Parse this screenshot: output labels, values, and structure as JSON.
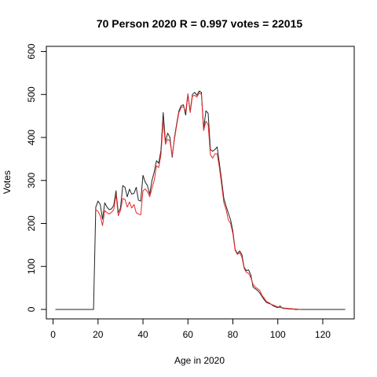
{
  "chart_data": {
    "type": "line",
    "title": "70 Person 2020 R = 0.997 votes = 22015",
    "xlabel": "Age in 2020",
    "ylabel": "Votes",
    "xlim": [
      -3,
      134
    ],
    "ylim": [
      -22,
      612
    ],
    "x_ticks": [
      0,
      20,
      40,
      60,
      80,
      100,
      120
    ],
    "y_ticks": [
      0,
      100,
      200,
      300,
      400,
      500,
      600
    ],
    "grid": false,
    "legend": "none",
    "series": [
      {
        "color": "#222222",
        "points": [
          [
            1,
            0
          ],
          [
            18,
            0
          ],
          [
            19,
            238
          ],
          [
            20,
            252
          ],
          [
            21,
            244
          ],
          [
            22,
            210
          ],
          [
            23,
            248
          ],
          [
            24,
            238
          ],
          [
            25,
            232
          ],
          [
            26,
            234
          ],
          [
            27,
            242
          ],
          [
            28,
            276
          ],
          [
            29,
            225
          ],
          [
            30,
            236
          ],
          [
            31,
            288
          ],
          [
            32,
            284
          ],
          [
            33,
            262
          ],
          [
            34,
            280
          ],
          [
            35,
            268
          ],
          [
            36,
            270
          ],
          [
            37,
            284
          ],
          [
            38,
            254
          ],
          [
            39,
            252
          ],
          [
            40,
            312
          ],
          [
            41,
            296
          ],
          [
            42,
            288
          ],
          [
            43,
            268
          ],
          [
            44,
            300
          ],
          [
            45,
            320
          ],
          [
            46,
            346
          ],
          [
            47,
            340
          ],
          [
            48,
            370
          ],
          [
            49,
            458
          ],
          [
            50,
            390
          ],
          [
            51,
            410
          ],
          [
            52,
            400
          ],
          [
            53,
            354
          ],
          [
            54,
            400
          ],
          [
            55,
            432
          ],
          [
            56,
            462
          ],
          [
            57,
            474
          ],
          [
            58,
            476
          ],
          [
            59,
            452
          ],
          [
            60,
            500
          ],
          [
            61,
            460
          ],
          [
            62,
            500
          ],
          [
            63,
            505
          ],
          [
            64,
            498
          ],
          [
            65,
            508
          ],
          [
            66,
            505
          ],
          [
            67,
            420
          ],
          [
            68,
            462
          ],
          [
            69,
            456
          ],
          [
            70,
            372
          ],
          [
            71,
            368
          ],
          [
            72,
            372
          ],
          [
            73,
            378
          ],
          [
            74,
            340
          ],
          [
            75,
            300
          ],
          [
            76,
            258
          ],
          [
            77,
            240
          ],
          [
            78,
            224
          ],
          [
            79,
            208
          ],
          [
            80,
            182
          ],
          [
            81,
            140
          ],
          [
            82,
            130
          ],
          [
            83,
            136
          ],
          [
            84,
            128
          ],
          [
            85,
            98
          ],
          [
            86,
            90
          ],
          [
            87,
            92
          ],
          [
            88,
            80
          ],
          [
            89,
            52
          ],
          [
            90,
            48
          ],
          [
            91,
            44
          ],
          [
            92,
            38
          ],
          [
            93,
            30
          ],
          [
            94,
            22
          ],
          [
            95,
            16
          ],
          [
            96,
            14
          ],
          [
            97,
            12
          ],
          [
            98,
            8
          ],
          [
            99,
            6
          ],
          [
            100,
            4
          ],
          [
            101,
            8
          ],
          [
            102,
            3
          ],
          [
            103,
            2
          ],
          [
            104,
            2
          ],
          [
            105,
            1
          ],
          [
            106,
            1
          ],
          [
            108,
            0
          ],
          [
            130,
            0
          ]
        ]
      },
      {
        "color": "#e8272a",
        "points": [
          [
            19,
            232
          ],
          [
            20,
            228
          ],
          [
            21,
            218
          ],
          [
            22,
            195
          ],
          [
            23,
            230
          ],
          [
            24,
            225
          ],
          [
            25,
            222
          ],
          [
            26,
            226
          ],
          [
            27,
            232
          ],
          [
            28,
            268
          ],
          [
            29,
            218
          ],
          [
            30,
            230
          ],
          [
            31,
            258
          ],
          [
            32,
            256
          ],
          [
            33,
            238
          ],
          [
            34,
            250
          ],
          [
            35,
            236
          ],
          [
            36,
            244
          ],
          [
            37,
            225
          ],
          [
            38,
            222
          ],
          [
            39,
            220
          ],
          [
            40,
            276
          ],
          [
            41,
            280
          ],
          [
            42,
            274
          ],
          [
            43,
            262
          ],
          [
            44,
            282
          ],
          [
            45,
            300
          ],
          [
            46,
            334
          ],
          [
            47,
            330
          ],
          [
            48,
            360
          ],
          [
            49,
            440
          ],
          [
            50,
            384
          ],
          [
            51,
            396
          ],
          [
            52,
            392
          ],
          [
            53,
            358
          ],
          [
            54,
            396
          ],
          [
            55,
            428
          ],
          [
            56,
            458
          ],
          [
            57,
            470
          ],
          [
            58,
            472
          ],
          [
            59,
            460
          ],
          [
            60,
            502
          ],
          [
            61,
            458
          ],
          [
            62,
            496
          ],
          [
            63,
            498
          ],
          [
            64,
            494
          ],
          [
            65,
            504
          ],
          [
            66,
            500
          ],
          [
            67,
            416
          ],
          [
            68,
            438
          ],
          [
            69,
            430
          ],
          [
            70,
            360
          ],
          [
            71,
            352
          ],
          [
            72,
            362
          ],
          [
            73,
            362
          ],
          [
            74,
            330
          ],
          [
            75,
            290
          ],
          [
            76,
            248
          ],
          [
            77,
            232
          ],
          [
            78,
            208
          ],
          [
            79,
            200
          ],
          [
            80,
            176
          ],
          [
            81,
            138
          ],
          [
            82,
            128
          ],
          [
            83,
            132
          ],
          [
            84,
            122
          ],
          [
            85,
            96
          ],
          [
            86,
            86
          ],
          [
            87,
            84
          ],
          [
            88,
            74
          ],
          [
            89,
            58
          ],
          [
            90,
            52
          ],
          [
            91,
            48
          ],
          [
            92,
            44
          ],
          [
            93,
            32
          ],
          [
            94,
            26
          ],
          [
            95,
            18
          ],
          [
            96,
            16
          ],
          [
            97,
            12
          ],
          [
            98,
            10
          ],
          [
            99,
            8
          ],
          [
            100,
            6
          ],
          [
            101,
            4
          ],
          [
            102,
            4
          ],
          [
            103,
            3
          ],
          [
            104,
            3
          ],
          [
            105,
            2
          ],
          [
            106,
            2
          ],
          [
            107,
            1
          ],
          [
            108,
            1
          ],
          [
            110,
            0
          ]
        ]
      }
    ]
  }
}
